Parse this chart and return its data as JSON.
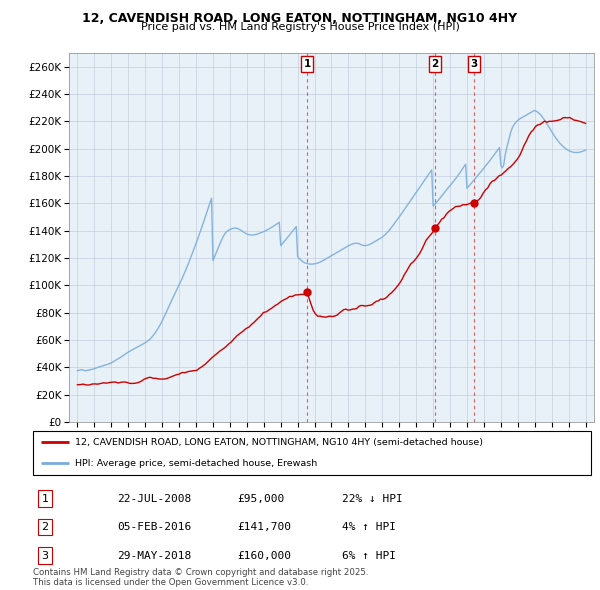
{
  "title": "12, CAVENDISH ROAD, LONG EATON, NOTTINGHAM, NG10 4HY",
  "subtitle": "Price paid vs. HM Land Registry's House Price Index (HPI)",
  "ylabel_ticks": [
    0,
    20000,
    40000,
    60000,
    80000,
    100000,
    120000,
    140000,
    160000,
    180000,
    200000,
    220000,
    240000,
    260000
  ],
  "ylim": [
    0,
    270000
  ],
  "xlim": [
    1994.5,
    2025.5
  ],
  "line_color_red": "#cc0000",
  "line_color_blue": "#7aaddc",
  "bg_color": "#e8f0f8",
  "grid_color": "#b8c8d8",
  "sale_events": [
    {
      "num": 1,
      "date": "22-JUL-2008",
      "price": 95000,
      "pct": "22%",
      "dir": "↓",
      "year": 2008.55
    },
    {
      "num": 2,
      "date": "05-FEB-2016",
      "price": 141700,
      "pct": "4%",
      "dir": "↑",
      "year": 2016.1
    },
    {
      "num": 3,
      "date": "29-MAY-2018",
      "price": 160000,
      "pct": "6%",
      "dir": "↑",
      "year": 2018.42
    }
  ],
  "legend_red": "12, CAVENDISH ROAD, LONG EATON, NOTTINGHAM, NG10 4HY (semi-detached house)",
  "legend_blue": "HPI: Average price, semi-detached house, Erewash",
  "footer": "Contains HM Land Registry data © Crown copyright and database right 2025.\nThis data is licensed under the Open Government Licence v3.0.",
  "hpi_years": [
    1995,
    1995.083,
    1995.167,
    1995.25,
    1995.333,
    1995.417,
    1995.5,
    1995.583,
    1995.667,
    1995.75,
    1995.833,
    1995.917,
    1996,
    1996.083,
    1996.167,
    1996.25,
    1996.333,
    1996.417,
    1996.5,
    1996.583,
    1996.667,
    1996.75,
    1996.833,
    1996.917,
    1997,
    1997.083,
    1997.167,
    1997.25,
    1997.333,
    1997.417,
    1997.5,
    1997.583,
    1997.667,
    1997.75,
    1997.833,
    1997.917,
    1998,
    1998.083,
    1998.167,
    1998.25,
    1998.333,
    1998.417,
    1998.5,
    1998.583,
    1998.667,
    1998.75,
    1998.833,
    1998.917,
    1999,
    1999.083,
    1999.167,
    1999.25,
    1999.333,
    1999.417,
    1999.5,
    1999.583,
    1999.667,
    1999.75,
    1999.833,
    1999.917,
    2000,
    2000.083,
    2000.167,
    2000.25,
    2000.333,
    2000.417,
    2000.5,
    2000.583,
    2000.667,
    2000.75,
    2000.833,
    2000.917,
    2001,
    2001.083,
    2001.167,
    2001.25,
    2001.333,
    2001.417,
    2001.5,
    2001.583,
    2001.667,
    2001.75,
    2001.833,
    2001.917,
    2002,
    2002.083,
    2002.167,
    2002.25,
    2002.333,
    2002.417,
    2002.5,
    2002.583,
    2002.667,
    2002.75,
    2002.833,
    2002.917,
    2003,
    2003.083,
    2003.167,
    2003.25,
    2003.333,
    2003.417,
    2003.5,
    2003.583,
    2003.667,
    2003.75,
    2003.833,
    2003.917,
    2004,
    2004.083,
    2004.167,
    2004.25,
    2004.333,
    2004.417,
    2004.5,
    2004.583,
    2004.667,
    2004.75,
    2004.833,
    2004.917,
    2005,
    2005.083,
    2005.167,
    2005.25,
    2005.333,
    2005.417,
    2005.5,
    2005.583,
    2005.667,
    2005.75,
    2005.833,
    2005.917,
    2006,
    2006.083,
    2006.167,
    2006.25,
    2006.333,
    2006.417,
    2006.5,
    2006.583,
    2006.667,
    2006.75,
    2006.833,
    2006.917,
    2007,
    2007.083,
    2007.167,
    2007.25,
    2007.333,
    2007.417,
    2007.5,
    2007.583,
    2007.667,
    2007.75,
    2007.833,
    2007.917,
    2008,
    2008.083,
    2008.167,
    2008.25,
    2008.333,
    2008.417,
    2008.5,
    2008.583,
    2008.667,
    2008.75,
    2008.833,
    2008.917,
    2009,
    2009.083,
    2009.167,
    2009.25,
    2009.333,
    2009.417,
    2009.5,
    2009.583,
    2009.667,
    2009.75,
    2009.833,
    2009.917,
    2010,
    2010.083,
    2010.167,
    2010.25,
    2010.333,
    2010.417,
    2010.5,
    2010.583,
    2010.667,
    2010.75,
    2010.833,
    2010.917,
    2011,
    2011.083,
    2011.167,
    2011.25,
    2011.333,
    2011.417,
    2011.5,
    2011.583,
    2011.667,
    2011.75,
    2011.833,
    2011.917,
    2012,
    2012.083,
    2012.167,
    2012.25,
    2012.333,
    2012.417,
    2012.5,
    2012.583,
    2012.667,
    2012.75,
    2012.833,
    2012.917,
    2013,
    2013.083,
    2013.167,
    2013.25,
    2013.333,
    2013.417,
    2013.5,
    2013.583,
    2013.667,
    2013.75,
    2013.833,
    2013.917,
    2014,
    2014.083,
    2014.167,
    2014.25,
    2014.333,
    2014.417,
    2014.5,
    2014.583,
    2014.667,
    2014.75,
    2014.833,
    2014.917,
    2015,
    2015.083,
    2015.167,
    2015.25,
    2015.333,
    2015.417,
    2015.5,
    2015.583,
    2015.667,
    2015.75,
    2015.833,
    2015.917,
    2016,
    2016.083,
    2016.167,
    2016.25,
    2016.333,
    2016.417,
    2016.5,
    2016.583,
    2016.667,
    2016.75,
    2016.833,
    2016.917,
    2017,
    2017.083,
    2017.167,
    2017.25,
    2017.333,
    2017.417,
    2017.5,
    2017.583,
    2017.667,
    2017.75,
    2017.833,
    2017.917,
    2018,
    2018.083,
    2018.167,
    2018.25,
    2018.333,
    2018.417,
    2018.5,
    2018.583,
    2018.667,
    2018.75,
    2018.833,
    2018.917,
    2019,
    2019.083,
    2019.167,
    2019.25,
    2019.333,
    2019.417,
    2019.5,
    2019.583,
    2019.667,
    2019.75,
    2019.833,
    2019.917,
    2020,
    2020.083,
    2020.167,
    2020.25,
    2020.333,
    2020.417,
    2020.5,
    2020.583,
    2020.667,
    2020.75,
    2020.833,
    2020.917,
    2021,
    2021.083,
    2021.167,
    2021.25,
    2021.333,
    2021.417,
    2021.5,
    2021.583,
    2021.667,
    2021.75,
    2021.833,
    2021.917,
    2022,
    2022.083,
    2022.167,
    2022.25,
    2022.333,
    2022.417,
    2022.5,
    2022.583,
    2022.667,
    2022.75,
    2022.833,
    2022.917,
    2023,
    2023.083,
    2023.167,
    2023.25,
    2023.333,
    2023.417,
    2023.5,
    2023.583,
    2023.667,
    2023.75,
    2023.833,
    2023.917,
    2024,
    2024.083,
    2024.167,
    2024.25,
    2024.333,
    2024.417,
    2024.5,
    2024.583,
    2024.667,
    2024.75,
    2024.833,
    2024.917,
    2025
  ],
  "hpi_vals": [
    37500,
    37800,
    38000,
    38200,
    37900,
    37600,
    37400,
    37700,
    37900,
    38200,
    38400,
    38600,
    39000,
    39300,
    39700,
    40100,
    40400,
    40700,
    41000,
    41400,
    41700,
    42000,
    42400,
    42800,
    43200,
    43800,
    44400,
    45000,
    45600,
    46200,
    46900,
    47600,
    48300,
    49000,
    49700,
    50400,
    51000,
    51700,
    52300,
    52900,
    53500,
    54000,
    54500,
    55100,
    55600,
    56200,
    56800,
    57300,
    57900,
    58600,
    59400,
    60200,
    61200,
    62400,
    63700,
    65100,
    66600,
    68200,
    70000,
    71900,
    73900,
    76000,
    78200,
    80400,
    82700,
    85000,
    87200,
    89500,
    91700,
    93900,
    96000,
    98200,
    100300,
    102500,
    104700,
    107000,
    109400,
    111900,
    114400,
    117000,
    119700,
    122400,
    125100,
    127800,
    130500,
    133400,
    136300,
    139200,
    142200,
    145200,
    148300,
    151400,
    154500,
    157600,
    160700,
    163800,
    118000,
    120500,
    123000,
    125500,
    128000,
    130500,
    133000,
    135200,
    137000,
    138500,
    139500,
    140200,
    140800,
    141300,
    141600,
    141800,
    141900,
    141700,
    141300,
    140800,
    140100,
    139400,
    138700,
    138100,
    137600,
    137200,
    136900,
    136800,
    136800,
    136900,
    137100,
    137400,
    137700,
    138100,
    138500,
    138900,
    139300,
    139800,
    140300,
    140800,
    141400,
    142000,
    142600,
    143300,
    144000,
    144700,
    145400,
    146100,
    129000,
    130200,
    131400,
    132600,
    133900,
    135200,
    136500,
    137800,
    139100,
    140400,
    141700,
    143000,
    121000,
    119800,
    118700,
    117800,
    117100,
    116500,
    116100,
    115800,
    115600,
    115500,
    115500,
    115600,
    115700,
    115900,
    116200,
    116600,
    117000,
    117500,
    118100,
    118700,
    119300,
    119900,
    120500,
    121100,
    121700,
    122300,
    122900,
    123500,
    124100,
    124700,
    125300,
    125900,
    126500,
    127100,
    127700,
    128300,
    128900,
    129400,
    129900,
    130300,
    130600,
    130800,
    130800,
    130600,
    130200,
    129700,
    129300,
    129100,
    129100,
    129200,
    129500,
    129900,
    130400,
    131000,
    131600,
    132200,
    132800,
    133400,
    134000,
    134600,
    135300,
    136100,
    137000,
    138100,
    139200,
    140400,
    141700,
    143000,
    144400,
    145800,
    147200,
    148600,
    150000,
    151500,
    153000,
    154500,
    156000,
    157500,
    159000,
    160500,
    162000,
    163500,
    165000,
    166500,
    168000,
    169500,
    171000,
    172500,
    174000,
    175500,
    177000,
    178500,
    180000,
    181500,
    183000,
    184500,
    158000,
    159000,
    160200,
    161400,
    162700,
    164000,
    165300,
    166600,
    167900,
    169200,
    170500,
    171800,
    173000,
    174200,
    175500,
    176800,
    178100,
    179500,
    180900,
    182400,
    183900,
    185500,
    187100,
    188700,
    171000,
    172200,
    173400,
    174600,
    175900,
    177100,
    178400,
    179600,
    180800,
    182100,
    183300,
    184600,
    185800,
    187100,
    188400,
    189700,
    191000,
    192400,
    193800,
    195200,
    196600,
    198000,
    199400,
    200800,
    188000,
    186000,
    188000,
    195000,
    200000,
    204000,
    208000,
    212000,
    215000,
    217000,
    218500,
    219800,
    220800,
    221600,
    222200,
    222800,
    223400,
    224000,
    224600,
    225200,
    225800,
    226400,
    227000,
    227600,
    228000,
    227500,
    226800,
    226000,
    225000,
    223800,
    222400,
    220900,
    219300,
    217600,
    215900,
    214200,
    212500,
    210800,
    209200,
    207700,
    206300,
    205000,
    203800,
    202700,
    201700,
    200800,
    200000,
    199300,
    198700,
    198200,
    197800,
    197500,
    197300,
    197200,
    197200,
    197300,
    197500,
    197800,
    198100,
    198500,
    199000
  ]
}
